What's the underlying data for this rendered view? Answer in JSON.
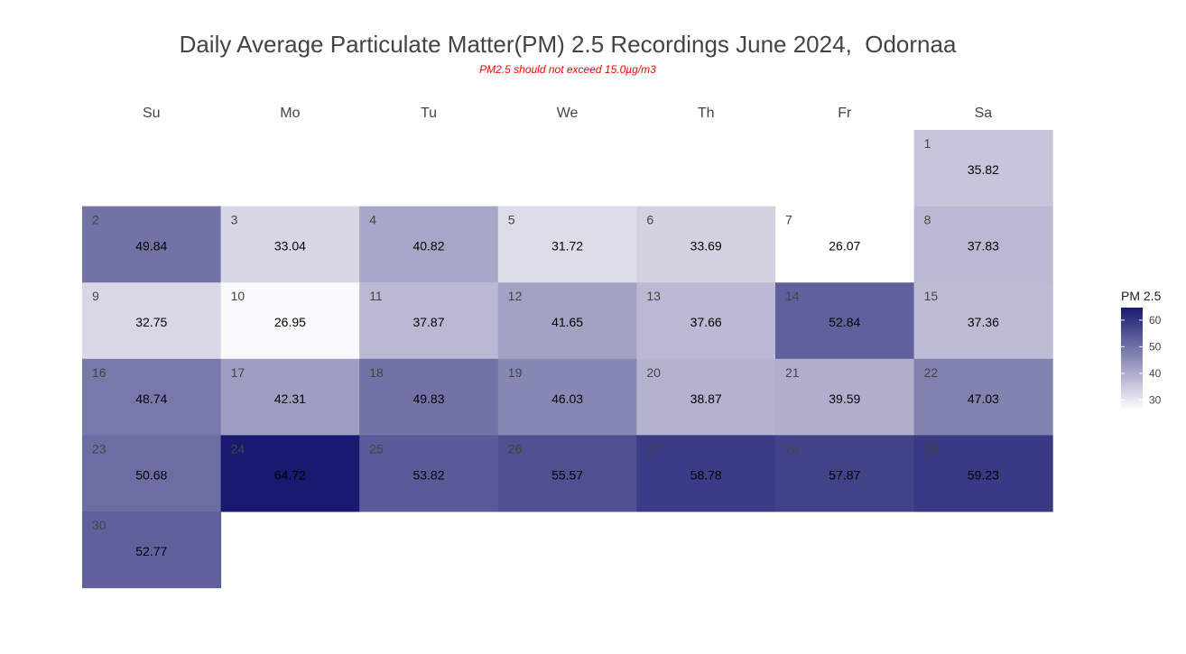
{
  "chart_data": {
    "type": "heatmap",
    "title": "Daily Average Particulate Matter(PM) 2.5 Recordings June 2024,  Odornaa",
    "subtitle": "PM2.5 should not exceed 15.0µg/m3",
    "weekdays": [
      "Su",
      "Mo",
      "Tu",
      "We",
      "Th",
      "Fr",
      "Sa"
    ],
    "first_weekday_index": 6,
    "days": [
      1,
      2,
      3,
      4,
      5,
      6,
      7,
      8,
      9,
      10,
      11,
      12,
      13,
      14,
      15,
      16,
      17,
      18,
      19,
      20,
      21,
      22,
      23,
      24,
      25,
      26,
      27,
      28,
      29,
      30
    ],
    "values": [
      35.82,
      49.84,
      33.04,
      40.82,
      31.72,
      33.69,
      26.07,
      37.83,
      32.75,
      26.95,
      37.87,
      41.65,
      37.66,
      52.84,
      37.36,
      48.74,
      42.31,
      49.83,
      46.03,
      38.87,
      39.59,
      47.03,
      50.68,
      64.72,
      53.82,
      55.57,
      58.78,
      57.87,
      59.23,
      52.77
    ],
    "value_labels": [
      "35.82",
      "49.84",
      "33.04",
      "40.82",
      "31.72",
      "33.69",
      "26.07",
      "37.83",
      "32.75",
      "26.95",
      "37.87",
      "41.65",
      "37.66",
      "52.84",
      "37.36",
      "48.74",
      "42.31",
      "49.83",
      "46.03",
      "38.87",
      "39.59",
      "47.03",
      "50.68",
      "64.72",
      "53.82",
      "55.57",
      "58.78",
      "57.87",
      "59.23",
      "52.77"
    ],
    "color_scale": {
      "low": 26.07,
      "high": 64.72,
      "low_color": "#ffffff",
      "high_color": "#191970"
    },
    "legend": {
      "title": "PM 2.5",
      "ticks": [
        30,
        40,
        50,
        60
      ],
      "tick_labels": [
        "30",
        "40",
        "50",
        "60"
      ],
      "placement": "right"
    }
  }
}
